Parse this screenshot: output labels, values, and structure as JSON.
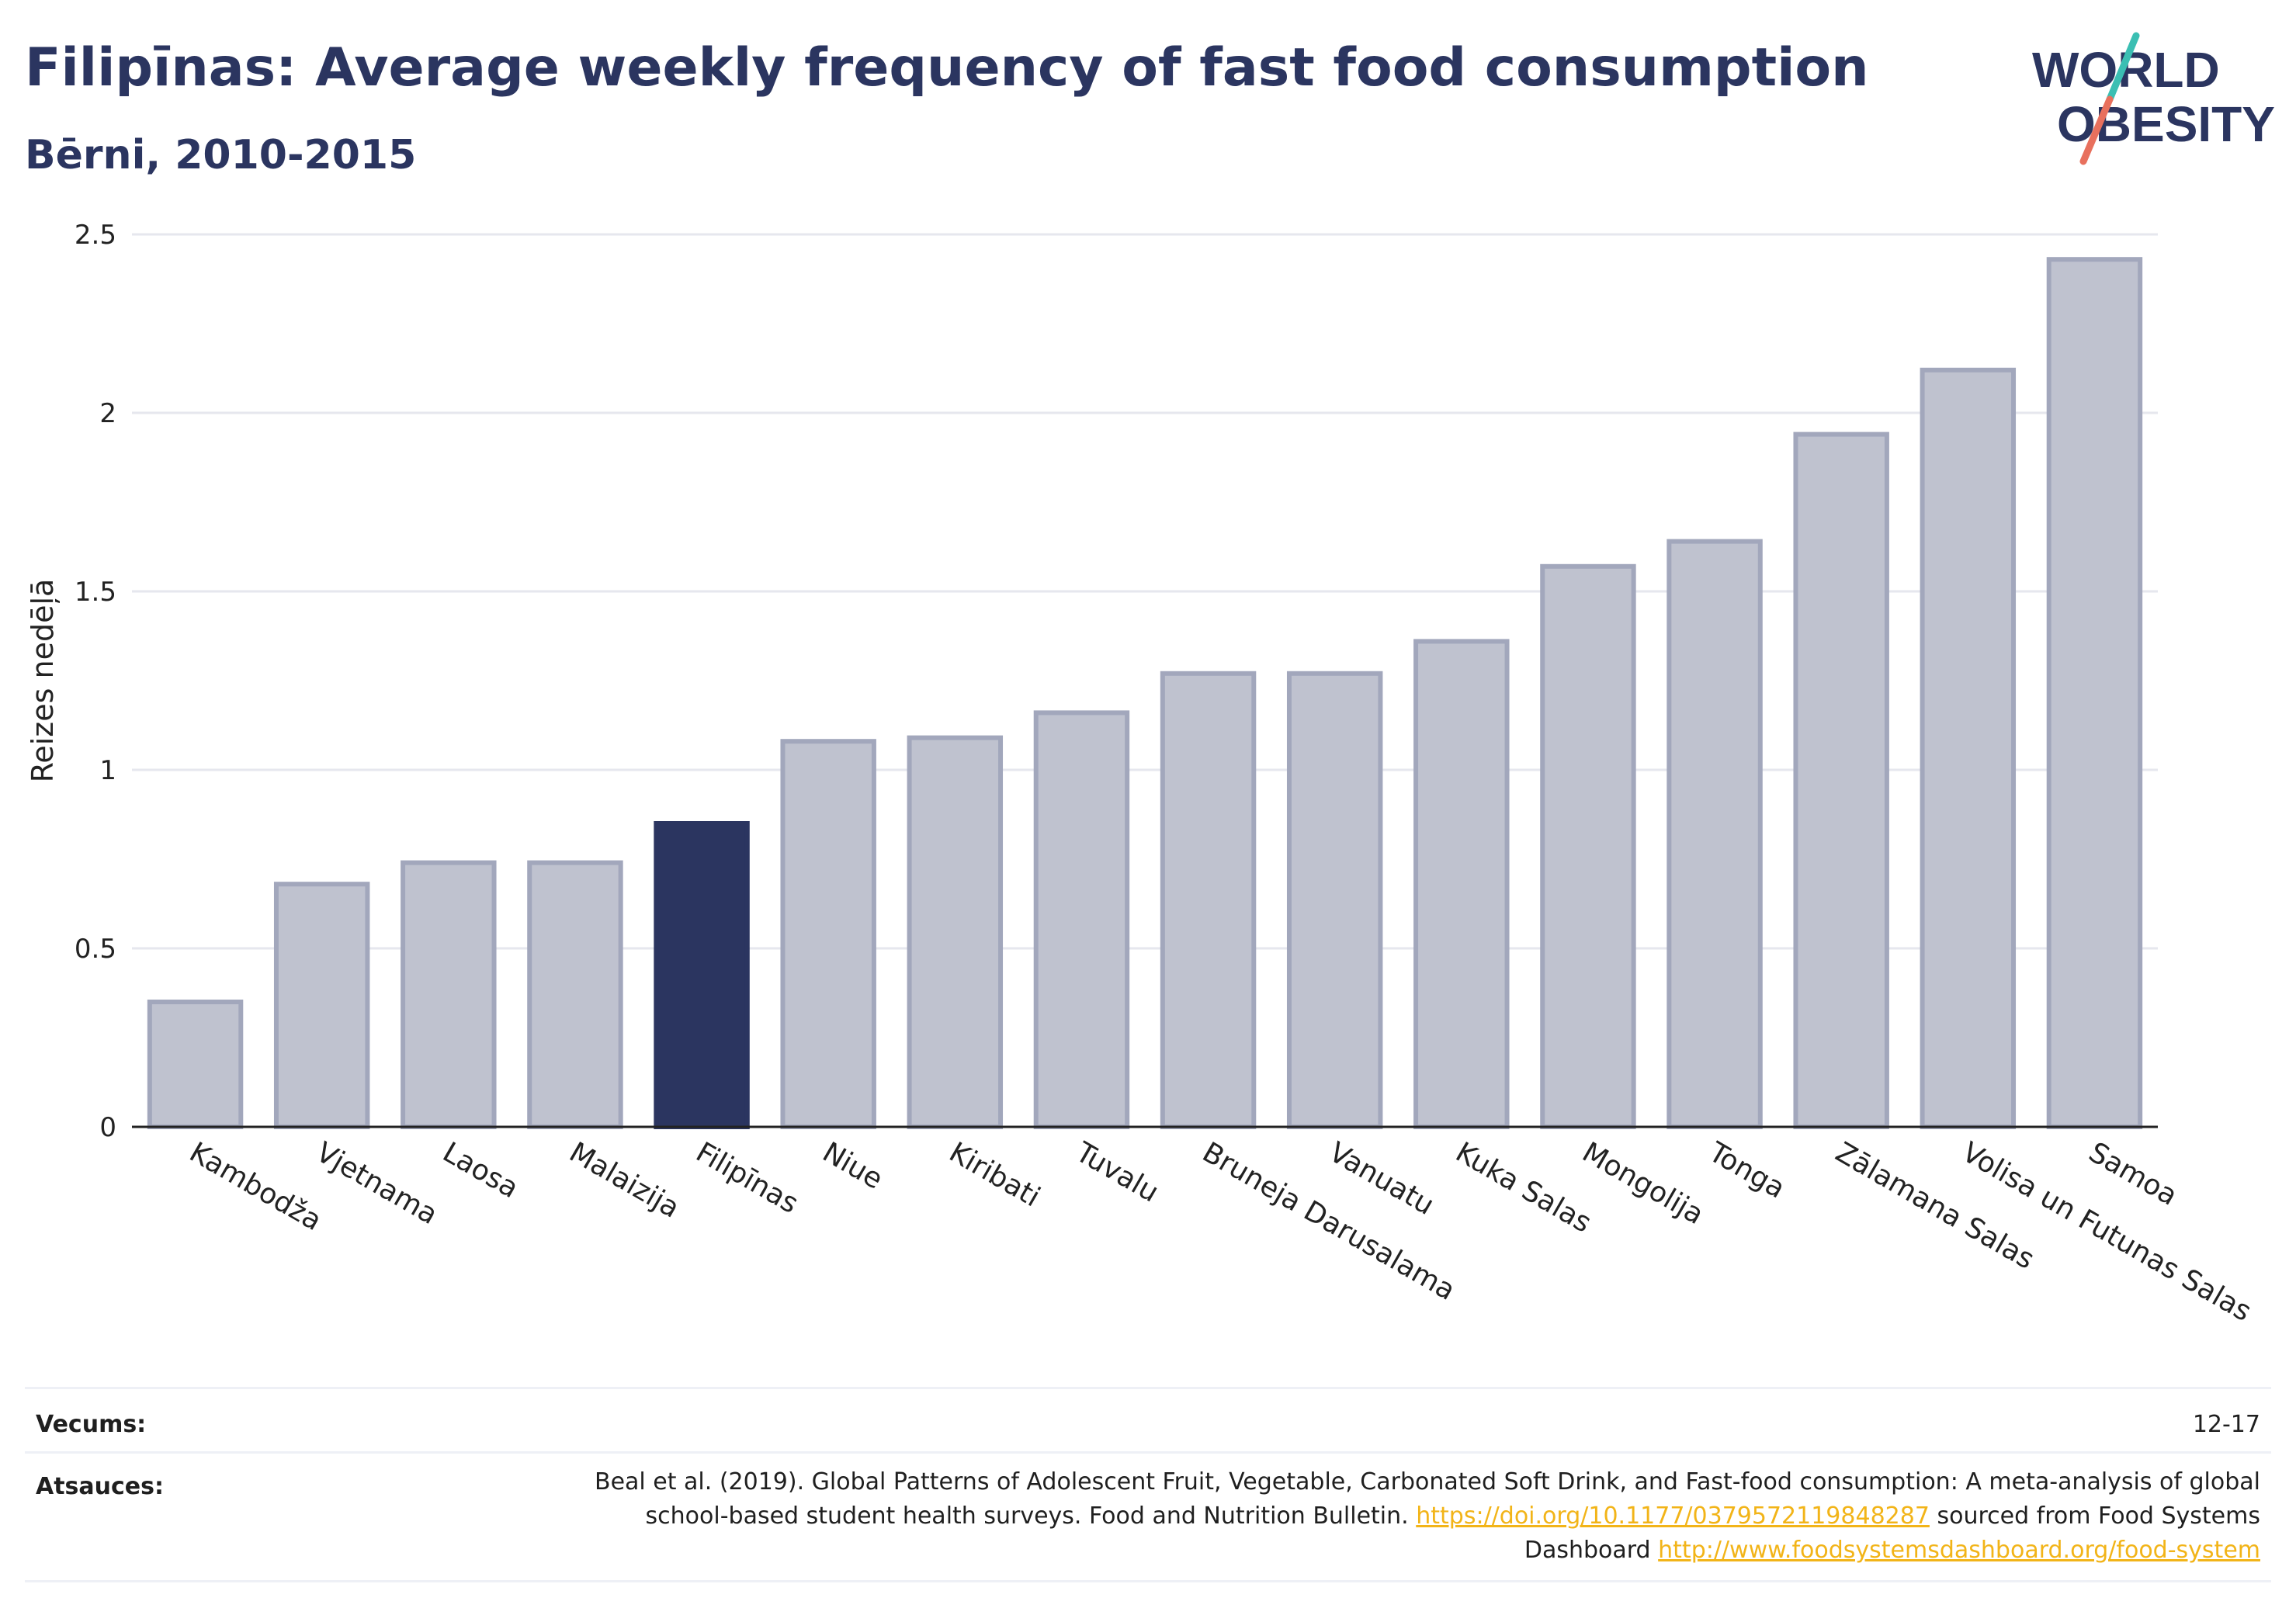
{
  "header": {
    "title": "Filipīnas: Average weekly frequency of fast food consumption",
    "subtitle": "Bērni, 2010-2015"
  },
  "logo": {
    "line1": "WORLD",
    "line2": "OBESITY",
    "colors": {
      "text": "#2b3560",
      "slash_top": "#3bbfb3",
      "slash_bottom": "#e8705d"
    }
  },
  "chart_data": {
    "type": "bar",
    "ylabel": "Reizes nedēļā",
    "xlabel": "",
    "ylim": [
      0,
      2.5
    ],
    "yticks": [
      0,
      0.5,
      1,
      1.5,
      2,
      2.5
    ],
    "ytick_labels": [
      "0",
      "0.5",
      "1",
      "1.5",
      "2",
      "2.5"
    ],
    "grid": true,
    "categories": [
      "Kambodža",
      "Vjetnama",
      "Laosa",
      "Malaizija",
      "Filipīnas",
      "Niue",
      "Kiribati",
      "Tuvalu",
      "Bruneja Darusalama",
      "Vanuatu",
      "Kuka Salas",
      "Mongolija",
      "Tonga",
      "Zālamana Salas",
      "Volisa un Futunas Salas",
      "Samoa"
    ],
    "values": [
      0.35,
      0.68,
      0.74,
      0.74,
      0.85,
      1.08,
      1.09,
      1.16,
      1.27,
      1.27,
      1.36,
      1.57,
      1.64,
      1.94,
      2.12,
      2.43
    ],
    "highlight": "Filipīnas",
    "colors": {
      "bar": "#bfc2cf",
      "bar_outline": "#a2a7bc",
      "highlight": "#2b3560",
      "grid": "#e6e7ee",
      "axis": "#222222"
    }
  },
  "footer": {
    "age_label": "Vecums:",
    "age_value": "12-17",
    "sources_label": "Atsauces:",
    "source_text_1": "Beal et al. (2019). Global Patterns of Adolescent Fruit, Vegetable, Carbonated Soft Drink, and Fast-food consumption: A meta-analysis of global school-based student health surveys. Food and Nutrition Bulletin.",
    "source_link_1": "https://doi.org/10.1177/0379572119848287",
    "source_text_2": "sourced from Food Systems Dashboard",
    "source_link_2": "http://www.foodsystemsdashboard.org/food-system"
  }
}
